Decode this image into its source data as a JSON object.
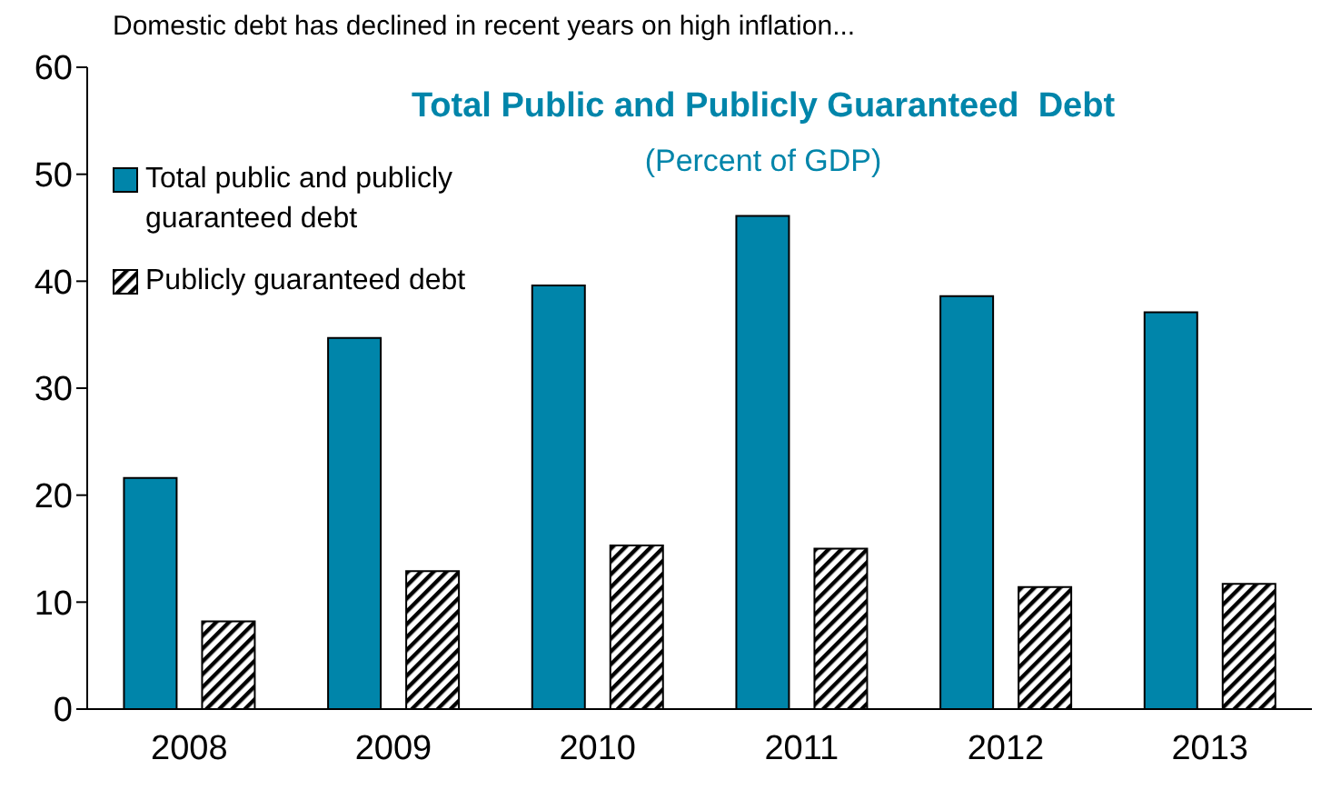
{
  "chart_data": {
    "type": "bar",
    "title": "Total Public and Publicly Guaranteed  Debt",
    "subtitle": "(Percent of GDP)",
    "annotations": [
      "Domestic debt has declined in recent years on high inflation..."
    ],
    "categories": [
      "2008",
      "2009",
      "2010",
      "2011",
      "2012",
      "2013"
    ],
    "series": [
      {
        "name": "Total public and publicly guaranteed debt",
        "color": "#0085aa",
        "values": [
          21.6,
          34.7,
          39.6,
          46.1,
          38.6,
          37.1
        ]
      },
      {
        "name": "Publicly guaranteed debt",
        "color": "#000000",
        "values": [
          8.2,
          12.9,
          15.3,
          15.0,
          11.4,
          11.7
        ]
      }
    ],
    "ylim": [
      0,
      60
    ],
    "yticks": [
      0,
      10,
      20,
      30,
      40,
      50,
      60
    ],
    "grid": false,
    "legend": "top left"
  }
}
